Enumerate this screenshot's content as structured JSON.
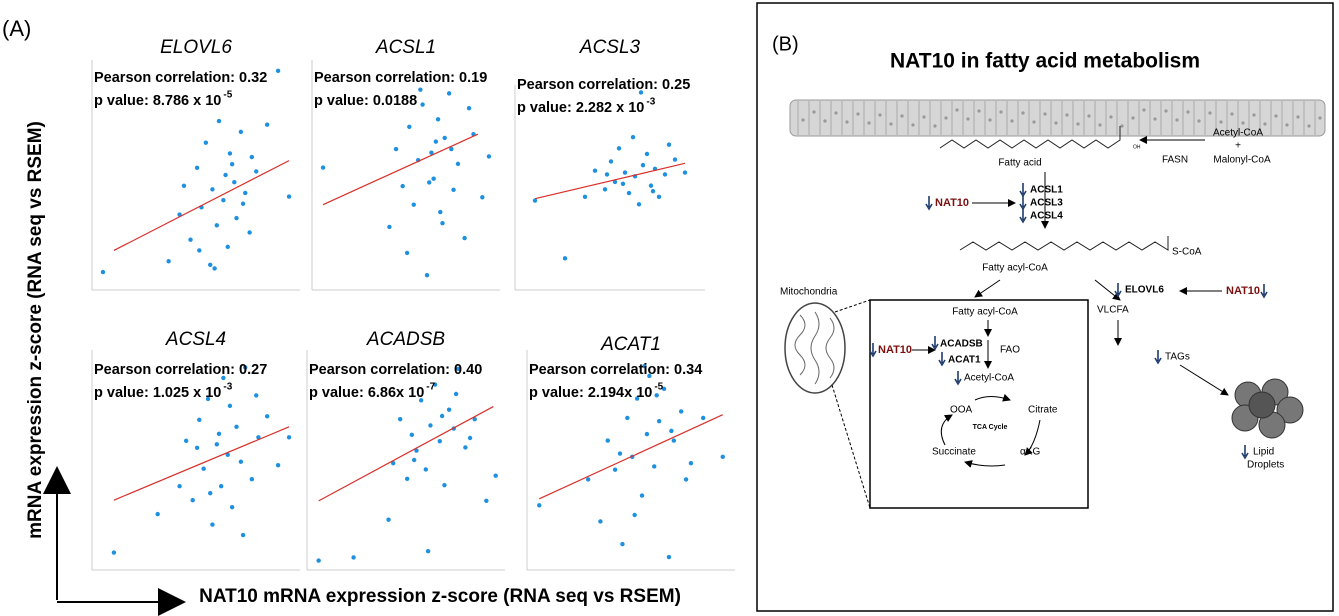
{
  "panel_a": {
    "label": "(A)",
    "y_label": "mRNA expression z-score (RNA seq vs RSEM)",
    "x_label": "NAT10 mRNA expression z-score (RNA seq vs RSEM)"
  },
  "chart_data": [
    {
      "type": "scatter",
      "title": "ELOVL6",
      "annotations": [
        "Pearson correlation: 0.32",
        "p value: 8.786 x 10"
      ],
      "p_exponent": "-5",
      "color": "#1e90e0",
      "fit_color": "#d9302a",
      "x": [
        -5.5,
        -2.5,
        -2,
        -1.8,
        -1.5,
        -1.2,
        -1,
        -0.8,
        -0.6,
        -0.5,
        -0.3,
        -0.2,
        0,
        0.1,
        0.2,
        0.3,
        0.5,
        0.6,
        0.8,
        1,
        1.2,
        1.5,
        2,
        2.5,
        3,
        -0.4,
        0.4,
        0.9,
        -1.1,
        1.3
      ],
      "y": [
        -2.1,
        -1.8,
        -0.5,
        0.3,
        -1.2,
        0.8,
        -0.3,
        1.5,
        -1.9,
        0.2,
        -0.8,
        2.1,
        -0.1,
        0.6,
        -1.4,
        1.2,
        0.4,
        -0.6,
        1.8,
        0.1,
        -1.0,
        0.7,
        2.0,
        3.5,
        0.0,
        -2.0,
        0.9,
        -0.2,
        -1.5,
        1.1
      ],
      "fit": {
        "x": [
          -5,
          3
        ],
        "y": [
          -1.5,
          1.0
        ]
      },
      "xlim": [
        -6,
        3.5
      ],
      "ylim": [
        -2.6,
        3.8
      ]
    },
    {
      "type": "scatter",
      "title": "ACSL1",
      "annotations": [
        "Pearson correlation: 0.19",
        "p value: 0.0188"
      ],
      "color": "#1e90e0",
      "fit_color": "#d9302a",
      "x": [
        -5,
        -2,
        -1.7,
        -1.4,
        -1.1,
        -0.9,
        -0.7,
        -0.5,
        -0.3,
        -0.1,
        0,
        0.2,
        0.3,
        0.5,
        0.7,
        0.9,
        1.1,
        1.4,
        1.8,
        2.2,
        -0.6,
        0.4,
        -1.2,
        0.8,
        1.6,
        -0.2,
        0.1,
        2.5
      ],
      "y": [
        0.1,
        -1.5,
        0.6,
        -0.4,
        1.2,
        -0.9,
        0.3,
        1.8,
        -2.8,
        0.5,
        -0.2,
        1.4,
        -1.1,
        0.9,
        2.1,
        -0.5,
        0.2,
        -1.8,
        1.0,
        -0.7,
        2.2,
        -1.4,
        -2.2,
        0.6,
        1.7,
        -0.3,
        0.8,
        0.4
      ],
      "fit": {
        "x": [
          -5,
          2
        ],
        "y": [
          -0.9,
          1.0
        ]
      },
      "xlim": [
        -5.5,
        3
      ],
      "ylim": [
        -3.2,
        3
      ]
    },
    {
      "type": "scatter",
      "title": "ACSL3",
      "annotations": [
        "Pearson correlation: 0.25",
        "p value: 2.282 x 10"
      ],
      "p_exponent": "-3",
      "color": "#1e90e0",
      "fit_color": "#d9302a",
      "x": [
        -5,
        -3.5,
        -2.5,
        -2,
        -1.5,
        -1.2,
        -1,
        -0.8,
        -0.5,
        -0.3,
        -0.1,
        0,
        0.2,
        0.4,
        0.6,
        0.8,
        1,
        1.2,
        1.5,
        2,
        2.5,
        -0.6,
        0.3,
        0.9,
        -1.4,
        1.7
      ],
      "y": [
        -1.2,
        -4.3,
        -1.0,
        0.4,
        -0.6,
        0.9,
        -0.2,
        1.6,
        0.3,
        -0.8,
        2.2,
        0.1,
        -1.4,
        0.7,
        1.3,
        -0.4,
        0.5,
        -1.0,
        0.2,
        1.0,
        0.3,
        -0.3,
        4.6,
        -0.7,
        0.2,
        1.8
      ],
      "fit": {
        "x": [
          -5,
          2.5
        ],
        "y": [
          -1.1,
          0.8
        ]
      },
      "xlim": [
        -6,
        3.5
      ],
      "ylim": [
        -6,
        5
      ]
    },
    {
      "type": "scatter",
      "title": "ACSL4",
      "annotations": [
        "Pearson correlation: 0.27",
        "p value: 1.025 x 10"
      ],
      "p_exponent": "-3",
      "color": "#1e90e0",
      "fit_color": "#d9302a",
      "x": [
        -5,
        -3,
        -2,
        -1.7,
        -1.4,
        -1.1,
        -0.9,
        -0.7,
        -0.5,
        -0.3,
        -0.1,
        0,
        0.2,
        0.4,
        0.6,
        0.8,
        1,
        1.3,
        1.6,
        2,
        2.5,
        3,
        -0.6,
        0.3,
        -1.2,
        0.9,
        1.5,
        -0.2
      ],
      "y": [
        -2.8,
        -1.7,
        -0.9,
        0.4,
        -1.3,
        1.0,
        -0.4,
        1.6,
        -2.0,
        0.3,
        -0.9,
        2.2,
        0.0,
        -1.5,
        0.8,
        -0.2,
        2.5,
        -0.7,
        0.5,
        1.1,
        -0.3,
        0.5,
        -1.1,
        1.4,
        0.2,
        -2.3,
        1.7,
        0.6
      ],
      "fit": {
        "x": [
          -5,
          3
        ],
        "y": [
          -1.3,
          0.8
        ]
      },
      "xlim": [
        -6,
        3.5
      ],
      "ylim": [
        -3.3,
        3
      ]
    },
    {
      "type": "scatter",
      "title": "ACADSB",
      "annotations": [
        "Pearson correlation: 0.40",
        "p value: 6.86x 10"
      ],
      "p_exponent": "-7",
      "color": "#1e90e0",
      "fit_color": "#d9302a",
      "x": [
        -5,
        -3.5,
        -2,
        -1.8,
        -1.5,
        -1.2,
        -1,
        -0.8,
        -0.6,
        -0.4,
        -0.2,
        0,
        0.2,
        0.4,
        0.6,
        0.8,
        1,
        1.3,
        1.7,
        2.2,
        2.6,
        -0.3,
        0.3,
        -0.9,
        0.9,
        1.5
      ],
      "y": [
        -3.7,
        -3.6,
        -2.4,
        -0.6,
        0.8,
        -1.1,
        0.3,
        -0.2,
        1.4,
        -0.8,
        0.6,
        1.9,
        0.1,
        -1.3,
        1.1,
        0.5,
        2.4,
        -0.1,
        0.8,
        -1.8,
        -1.0,
        -3.4,
        0.9,
        -0.5,
        1.6,
        0.2
      ],
      "fit": {
        "x": [
          -5,
          2.5
        ],
        "y": [
          -1.8,
          1.2
        ]
      },
      "xlim": [
        -5.5,
        3
      ],
      "ylim": [
        -4,
        3
      ]
    },
    {
      "type": "scatter",
      "title": "ACAT1",
      "annotations": [
        "Pearson correlation: 0.34",
        "p value: 2.194x 10"
      ],
      "p_exponent": "-5",
      "color": "#1e90e0",
      "fit_color": "#d9302a",
      "x": [
        -4.5,
        -2.5,
        -2,
        -1.7,
        -1.4,
        -1.1,
        -0.9,
        -0.7,
        -0.5,
        -0.3,
        -0.1,
        0,
        0.2,
        0.4,
        0.6,
        0.8,
        1,
        1.3,
        1.7,
        2.2,
        3,
        -0.6,
        0.3,
        -1.2,
        0.9,
        1.5,
        -0.2
      ],
      "y": [
        -1.8,
        -1.0,
        -2.3,
        0.2,
        -0.7,
        -3.0,
        0.9,
        -0.3,
        1.5,
        -1.5,
        0.4,
        2.2,
        -0.6,
        0.8,
        1.8,
        -3.4,
        0.2,
        1.1,
        -0.5,
        0.9,
        -0.3,
        -2.1,
        1.6,
        -0.2,
        0.5,
        -1.0,
        2.5
      ],
      "fit": {
        "x": [
          -4.5,
          3
        ],
        "y": [
          -1.6,
          1.0
        ]
      },
      "xlim": [
        -5,
        3.5
      ],
      "ylim": [
        -3.8,
        3
      ]
    }
  ],
  "panel_b": {
    "label": "(B)",
    "title": "NAT10 in fatty acid metabolism",
    "acetyl_coa": "Acetyl-CoA",
    "plus": "+",
    "malonyl_coa": "Malonyl-CoA",
    "fasn": "FASN",
    "oh": "OH",
    "fatty_acid": "Fatty acid",
    "nat10_1": "NAT10",
    "enzymes_1": [
      "ACSL1",
      "ACSL3",
      "ACSL4"
    ],
    "s_coa": "S-CoA",
    "fatty_acyl_coa": "Fatty acyl-CoA",
    "mitochondria": "Mitochondria",
    "elovl6": "ELOVL6",
    "nat10_2": "NAT10",
    "vlcfa": "VLCFA",
    "tags": "TAGs",
    "lipid_droplets": [
      "Lipid",
      "Droplets"
    ],
    "mito_box": {
      "fatty_acyl_coa": "Fatty acyl-CoA",
      "fao": "FAO",
      "nat10": "NAT10",
      "enzymes": [
        "ACADSB",
        "ACAT1"
      ],
      "acetyl_coa": "Acetyl-CoA",
      "ooa": "OOA",
      "citrate": "Citrate",
      "tca_cycle": "TCA Cycle",
      "succinate": "Succinate",
      "akg": "αKG"
    }
  }
}
